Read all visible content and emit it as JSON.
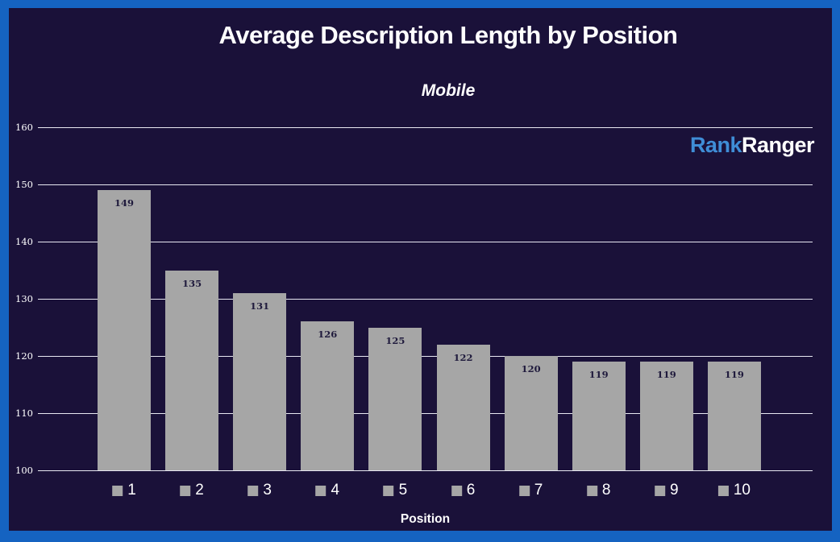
{
  "chart": {
    "title": "Average Description Length by Position",
    "subtitle": "Mobile",
    "xlabel": "Position",
    "brand": {
      "part1": "Rank",
      "part2": "Ranger"
    }
  },
  "chart_data": {
    "type": "bar",
    "title": "Average Description Length by Position",
    "subtitle": "Mobile",
    "xlabel": "Position",
    "ylabel": "",
    "categories": [
      "1",
      "2",
      "3",
      "4",
      "5",
      "6",
      "7",
      "8",
      "9",
      "10"
    ],
    "values": [
      149,
      135,
      131,
      126,
      125,
      122,
      120,
      119,
      119,
      119
    ],
    "ylim": [
      100,
      160
    ],
    "yticks": [
      160,
      150,
      140,
      130,
      120,
      110,
      100
    ],
    "grid": true,
    "legend_position": "bottom",
    "data_labels": "inside-top"
  },
  "colors": {
    "frame_border": "#1563c1",
    "background": "#1a1139",
    "bar": "#a6a6a6",
    "gridline": "#e8e8f2",
    "text": "#ffffff",
    "data_label": "#1f1a3c",
    "brand_blue": "#3f8dd6",
    "brand_white": "#ffffff"
  }
}
